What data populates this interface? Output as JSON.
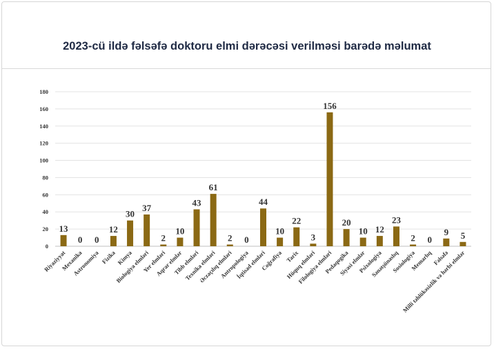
{
  "chart_data": {
    "type": "bar",
    "title": "2023-cü ildə fəlsəfə doktoru elmi dərəcəsi verilməsi barədə məlumat",
    "xlabel": "",
    "ylabel": "",
    "ylim": [
      0,
      180
    ],
    "yticks": [
      0,
      20,
      40,
      60,
      80,
      100,
      120,
      140,
      160,
      180
    ],
    "grid": true,
    "legend": "none",
    "bar_color": "#8B6914",
    "categories": [
      "Riyaziyyat",
      "Mexanika",
      "Astronomiya",
      "Fizika",
      "Kimya",
      "Biologiya elmləri",
      "Yer elmləri",
      "Aqrar elmlər",
      "Tibb elmləri",
      "Texnika elmləri",
      "Əczaçılıq elmləri",
      "Antropologiya",
      "İqtisad elmləri",
      "Coğrafiya",
      "Tarix",
      "Hüquq elmləri",
      "Filologiya elmləri",
      "Pedaqogika",
      "Siyasi elmlər",
      "Psixologiya",
      "Sənətşünaslıq",
      "Sosiologiya",
      "Memarlıq",
      "Fəlsəfə",
      "Milli təhlükəsizlik və hərbi elmlər"
    ],
    "values": [
      13,
      0,
      0,
      12,
      30,
      37,
      2,
      10,
      43,
      61,
      2,
      0,
      44,
      10,
      22,
      3,
      156,
      20,
      10,
      12,
      23,
      2,
      0,
      9,
      5
    ]
  }
}
